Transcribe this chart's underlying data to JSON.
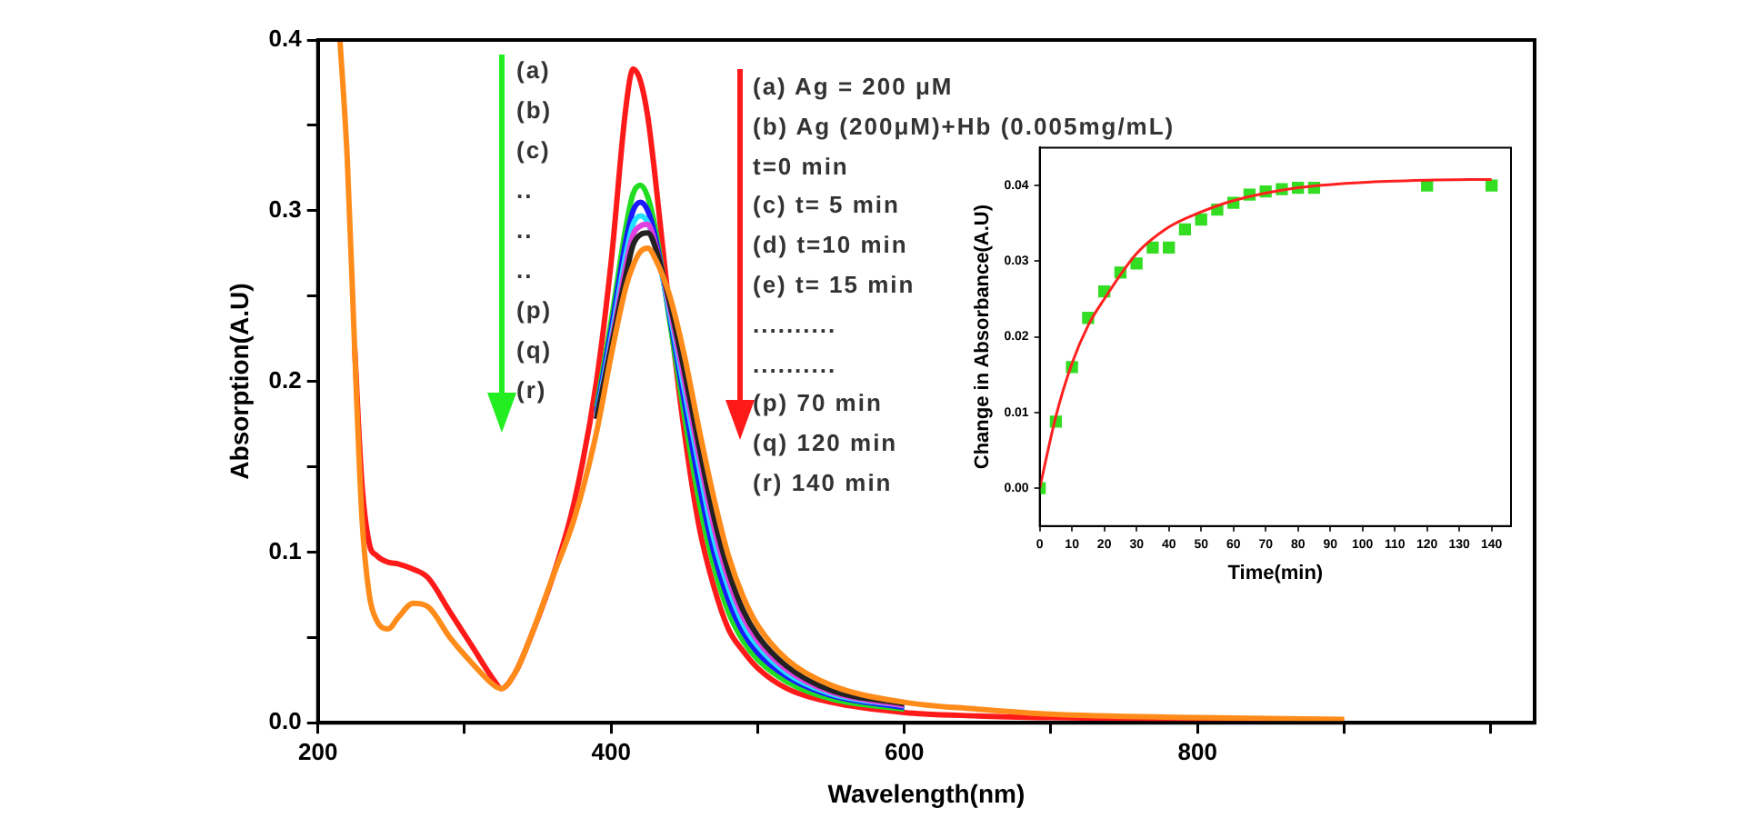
{
  "chart_data": [
    {
      "type": "line",
      "xlabel": "Wavelength(nm)",
      "ylabel": "Absorption(A.U)",
      "xlim": [
        200,
        1030
      ],
      "ylim": [
        0,
        0.4
      ],
      "xticks": [
        200,
        {
          "value": 300,
          "label": null
        },
        400,
        {
          "value": 500,
          "label": null
        },
        600,
        {
          "value": 700,
          "label": null
        },
        800,
        {
          "value": 900,
          "label": null
        },
        {
          "value": 1000,
          "label": null
        }
      ],
      "yticks": [
        {
          "value": 0,
          "label": "0.0"
        },
        {
          "value": 0.05,
          "label": null
        },
        0.1,
        {
          "value": 0.15,
          "label": null
        },
        0.2,
        {
          "value": 0.25,
          "label": null
        },
        0.3,
        {
          "value": 0.35,
          "label": null
        },
        0.4
      ],
      "grid": false,
      "legend": false,
      "x": [
        215,
        220,
        225,
        230,
        235,
        240,
        248,
        255,
        265,
        275,
        290,
        305,
        320,
        325,
        335,
        345,
        360,
        375,
        390,
        400,
        410,
        415,
        420,
        425,
        430,
        440,
        450,
        460,
        470,
        480,
        490,
        500,
        520,
        550,
        600,
        650,
        700,
        800,
        900
      ],
      "series": [
        {
          "color": "#ff1a1a",
          "values": [
            null,
            null,
            0.22,
            0.14,
            0.105,
            0.098,
            0.094,
            0.093,
            0.09,
            0.085,
            0.065,
            0.045,
            0.025,
            0.02,
            0.03,
            0.05,
            0.085,
            0.13,
            0.2,
            0.27,
            0.36,
            0.383,
            0.376,
            0.355,
            0.32,
            0.24,
            0.17,
            0.115,
            0.08,
            0.055,
            0.042,
            0.032,
            0.02,
            0.012,
            0.006,
            0.004,
            0.003,
            0.002,
            0.001
          ]
        },
        {
          "color": "#22dd22",
          "values": [
            null,
            null,
            null,
            null,
            null,
            null,
            null,
            null,
            null,
            null,
            null,
            null,
            null,
            null,
            null,
            null,
            null,
            null,
            0.185,
            0.235,
            0.29,
            0.31,
            0.315,
            0.308,
            0.29,
            0.235,
            0.18,
            0.13,
            0.092,
            0.065,
            0.048,
            0.037,
            0.024,
            0.014,
            0.008,
            null,
            null,
            null,
            null
          ]
        },
        {
          "color": "#1a1aff",
          "values": [
            null,
            null,
            null,
            null,
            null,
            null,
            null,
            null,
            null,
            null,
            null,
            null,
            null,
            null,
            null,
            null,
            null,
            null,
            0.182,
            0.23,
            0.282,
            0.3,
            0.305,
            0.3,
            0.285,
            0.238,
            0.188,
            0.14,
            0.1,
            0.072,
            0.053,
            0.041,
            0.027,
            0.016,
            0.009,
            null,
            null,
            null,
            null
          ]
        },
        {
          "color": "#22e0ff",
          "values": [
            null,
            null,
            null,
            null,
            null,
            null,
            null,
            null,
            null,
            null,
            null,
            null,
            null,
            null,
            null,
            null,
            null,
            null,
            0.18,
            0.225,
            0.274,
            0.292,
            0.297,
            0.293,
            0.28,
            0.24,
            0.195,
            0.15,
            0.108,
            0.079,
            0.058,
            0.045,
            0.029,
            0.017,
            0.01,
            null,
            null,
            null,
            null
          ]
        },
        {
          "color": "#e040e0",
          "values": [
            null,
            null,
            null,
            null,
            null,
            null,
            null,
            null,
            null,
            null,
            null,
            null,
            null,
            null,
            null,
            null,
            null,
            null,
            0.178,
            0.222,
            0.268,
            0.286,
            0.291,
            0.292,
            0.281,
            0.243,
            0.2,
            0.156,
            0.115,
            0.084,
            0.062,
            0.048,
            0.031,
            0.018,
            0.01,
            null,
            null,
            null,
            null
          ]
        },
        {
          "color": "#222222",
          "values": [
            null,
            null,
            null,
            null,
            null,
            null,
            null,
            null,
            null,
            null,
            null,
            null,
            null,
            null,
            null,
            null,
            null,
            null,
            0.178,
            0.22,
            0.262,
            0.28,
            0.286,
            0.287,
            0.279,
            0.246,
            0.206,
            0.162,
            0.121,
            0.089,
            0.066,
            0.051,
            0.033,
            0.019,
            0.011,
            null,
            null,
            null,
            null
          ]
        },
        {
          "color": "#ff8c1a",
          "values": [
            0.4,
            0.33,
            0.22,
            0.12,
            0.075,
            0.06,
            0.055,
            0.062,
            0.07,
            0.068,
            0.05,
            0.035,
            0.022,
            0.02,
            0.03,
            0.05,
            0.085,
            0.12,
            0.17,
            0.215,
            0.255,
            0.268,
            0.276,
            0.278,
            0.272,
            0.25,
            0.215,
            0.172,
            0.132,
            0.098,
            0.074,
            0.057,
            0.037,
            0.022,
            0.012,
            0.008,
            0.005,
            0.003,
            0.002
          ]
        }
      ],
      "annotations": [
        "(a)",
        "(b)",
        "(c)",
        "..",
        "..",
        "..",
        "(p)",
        "(q)",
        "(r)",
        "(a) Ag = 200 μM",
        "(b) Ag (200μM)+Hb (0.005mg/mL)",
        "t=0 min",
        "(c) t= 5 min",
        "(d) t=10 min",
        "(e) t= 15 min",
        "..........",
        "..........",
        "(p) 70 min",
        "(q) 120 min",
        "(r) 140 min"
      ]
    },
    {
      "type": "scatter",
      "xlabel": "Time(min)",
      "ylabel": "Change in Absorbance(A.U)",
      "xlim": [
        0,
        146
      ],
      "ylim": [
        -0.005,
        0.045
      ],
      "xticks": [
        0,
        10,
        20,
        30,
        40,
        50,
        60,
        70,
        80,
        90,
        100,
        110,
        120,
        130,
        140
      ],
      "yticks": [
        {
          "value": 0,
          "label": "0.00"
        },
        0.01,
        0.02,
        0.03,
        0.04
      ],
      "grid": false,
      "legend": false,
      "series": [
        {
          "type": "scatter",
          "color": "#33dd22",
          "marker": "square",
          "x": [
            0,
            5,
            10,
            15,
            20,
            25,
            30,
            35,
            40,
            45,
            50,
            55,
            60,
            65,
            70,
            75,
            80,
            85,
            120,
            140
          ],
          "values": [
            0,
            0.0088,
            0.016,
            0.0225,
            0.026,
            0.0285,
            0.0297,
            0.0318,
            0.0318,
            0.0342,
            0.0355,
            0.0368,
            0.0377,
            0.0388,
            0.0392,
            0.0395,
            0.0397,
            0.0397,
            0.04,
            0.04
          ]
        },
        {
          "type": "line",
          "color": "#ff2020",
          "x": [
            0,
            5,
            10,
            15,
            20,
            30,
            40,
            50,
            60,
            80,
            100,
            120,
            140
          ],
          "values": [
            0,
            0.0095,
            0.0165,
            0.0215,
            0.025,
            0.031,
            0.0345,
            0.0365,
            0.038,
            0.0397,
            0.0404,
            0.0407,
            0.0408
          ]
        }
      ]
    }
  ]
}
